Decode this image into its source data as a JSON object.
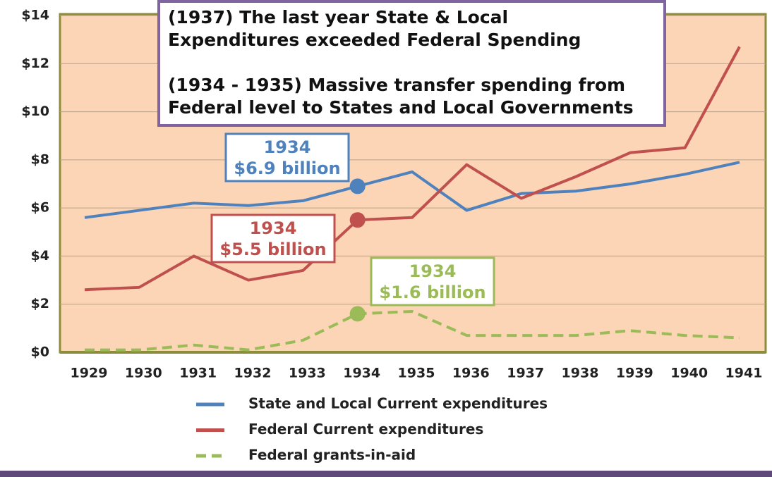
{
  "chart_data": {
    "type": "line",
    "categories": [
      "1929",
      "1930",
      "1931",
      "1932",
      "1933",
      "1934",
      "1935",
      "1936",
      "1937",
      "1938",
      "1939",
      "1940",
      "1941"
    ],
    "series": [
      {
        "name": "State and Local Current expenditures",
        "color": "#4f81bd",
        "dash": false,
        "values": [
          5.6,
          5.9,
          6.2,
          6.1,
          6.3,
          6.9,
          7.5,
          5.9,
          6.6,
          6.7,
          7.0,
          7.4,
          7.9
        ]
      },
      {
        "name": "Federal Current expenditures",
        "color": "#c0504d",
        "dash": false,
        "values": [
          2.6,
          2.7,
          4.0,
          3.0,
          3.4,
          5.5,
          5.6,
          7.8,
          6.4,
          7.3,
          8.3,
          8.5,
          12.7
        ]
      },
      {
        "name": "Federal grants-in-aid",
        "color": "#9bbb59",
        "dash": true,
        "values": [
          0.1,
          0.1,
          0.3,
          0.1,
          0.5,
          1.6,
          1.7,
          0.7,
          0.7,
          0.7,
          0.9,
          0.7,
          0.6
        ]
      }
    ],
    "ylim": [
      0,
      14
    ],
    "yticks": [
      {
        "value": 0,
        "label": "$0"
      },
      {
        "value": 2,
        "label": "$2"
      },
      {
        "value": 4,
        "label": "$4"
      },
      {
        "value": 6,
        "label": "$6"
      },
      {
        "value": 8,
        "label": "$8"
      },
      {
        "value": 10,
        "label": "$10"
      },
      {
        "value": 12,
        "label": "$12"
      },
      {
        "value": 14,
        "label": "$14"
      }
    ],
    "grid": true,
    "note_lines": [
      "(1937) The last year State & Local",
      "Expenditures exceeded Federal Spending",
      "(1934 - 1935) Massive  transfer spending from",
      "Federal level to States and Local Governments"
    ],
    "callouts": [
      {
        "lines": [
          "1934",
          "$6.9 billion"
        ]
      },
      {
        "lines": [
          "1934",
          "$5.5 billion"
        ]
      },
      {
        "lines": [
          "1934",
          "$1.6 billion"
        ]
      }
    ]
  }
}
